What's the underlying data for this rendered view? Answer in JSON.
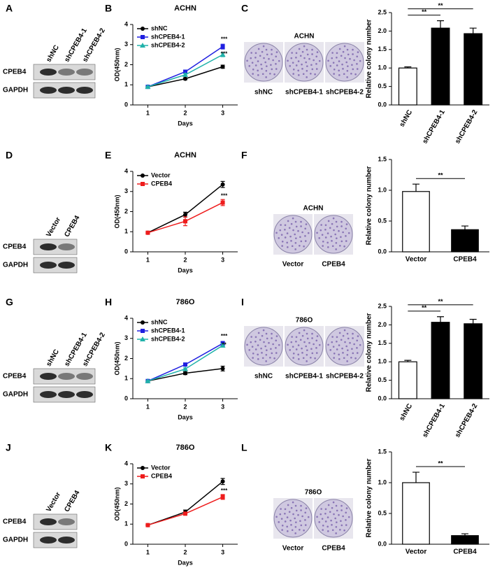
{
  "panel_letters": [
    "A",
    "B",
    "C",
    "D",
    "E",
    "F",
    "G",
    "H",
    "I",
    "J",
    "K",
    "L"
  ],
  "blots": [
    {
      "lanes": [
        "shNC",
        "shCPEB4-1",
        "shCPEB4-2"
      ],
      "rows": [
        "CPEB4",
        "GAPDH"
      ]
    },
    {
      "lanes": [
        "Vector",
        "CPEB4"
      ],
      "rows": [
        "CPEB4",
        "GAPDH"
      ]
    },
    {
      "lanes": [
        "shNC",
        "shCPEB4-1",
        "shCPEB4-2"
      ],
      "rows": [
        "CPEB4",
        "GAPDH"
      ]
    },
    {
      "lanes": [
        "Vector",
        "CPEB4"
      ],
      "rows": [
        "CPEB4",
        "GAPDH"
      ]
    }
  ],
  "colonies": [
    {
      "title": "ACHN",
      "labels": [
        "shNC",
        "shCPEB4-1",
        "shCPEB4-2"
      ]
    },
    {
      "title": "ACHN",
      "labels": [
        "Vector",
        "CPEB4"
      ]
    },
    {
      "title": "786O",
      "labels": [
        "shNC",
        "shCPEB4-1",
        "shCPEB4-2"
      ]
    },
    {
      "title": "786O",
      "labels": [
        "Vector",
        "CPEB4"
      ]
    }
  ],
  "chart_data": [
    {
      "type": "line",
      "title": "ACHN",
      "x_label": "Days",
      "y_label": "OD(450nm)",
      "x": [
        1,
        2,
        3
      ],
      "xlim": [
        0.6,
        3.4
      ],
      "xticks": [
        1,
        2,
        3
      ],
      "ylim": [
        0,
        4
      ],
      "yticks": [
        0,
        1,
        2,
        3,
        4
      ],
      "series": [
        {
          "name": "shNC",
          "color": "#000000",
          "values": [
            0.9,
            1.3,
            1.9
          ],
          "errors": [
            0.03,
            0.05,
            0.08
          ]
        },
        {
          "name": "shCPEB4-1",
          "color": "#1f1fe0",
          "values": [
            0.9,
            1.65,
            2.9
          ],
          "errors": [
            0.03,
            0.08,
            0.12
          ]
        },
        {
          "name": "shCPEB4-2",
          "color": "#20b2aa",
          "values": [
            0.9,
            1.5,
            2.5
          ],
          "errors": [
            0.03,
            0.06,
            0.1
          ]
        }
      ],
      "annotations": [
        "***",
        "***"
      ]
    },
    {
      "type": "bar",
      "y_label": "Relative colony number",
      "categories": [
        "shNC",
        "shCPEB4-1",
        "shCPEB4-2"
      ],
      "values": [
        1.0,
        2.08,
        1.93
      ],
      "errors": [
        0.03,
        0.2,
        0.15
      ],
      "colors": [
        "#ffffff",
        "#000000",
        "#000000"
      ],
      "ylim": [
        0,
        2.5
      ],
      "yticks": [
        {
          "value": 0,
          "label": "0.0"
        },
        {
          "value": 0.5,
          "label": "0.5"
        },
        {
          "value": 1,
          "label": "1.0"
        },
        {
          "value": 1.5,
          "label": "1.5"
        },
        {
          "value": 2,
          "label": "2.0"
        },
        {
          "value": 2.5,
          "label": "2.5"
        }
      ],
      "annotations": [
        "**",
        "**"
      ]
    },
    {
      "type": "line",
      "title": "ACHN",
      "x_label": "Days",
      "y_label": "OD(450nm)",
      "x": [
        1,
        2,
        3
      ],
      "xlim": [
        0.6,
        3.4
      ],
      "xticks": [
        1,
        2,
        3
      ],
      "ylim": [
        0,
        4
      ],
      "yticks": [
        0,
        1,
        2,
        3,
        4
      ],
      "series": [
        {
          "name": "Vector",
          "color": "#000000",
          "values": [
            0.95,
            1.85,
            3.35
          ],
          "errors": [
            0.03,
            0.12,
            0.15
          ]
        },
        {
          "name": "CPEB4",
          "color": "#ee1c1c",
          "values": [
            0.95,
            1.52,
            2.45
          ],
          "errors": [
            0.03,
            0.22,
            0.15
          ]
        }
      ],
      "annotations": [
        "***"
      ]
    },
    {
      "type": "bar",
      "y_label": "Relative colony number",
      "categories": [
        "Vector",
        "CPEB4"
      ],
      "values": [
        0.98,
        0.36
      ],
      "errors": [
        0.12,
        0.06
      ],
      "colors": [
        "#ffffff",
        "#000000"
      ],
      "ylim": [
        0,
        1.5
      ],
      "yticks": [
        {
          "value": 0,
          "label": "0.0"
        },
        {
          "value": 0.5,
          "label": "0.5"
        },
        {
          "value": 1,
          "label": "1.0"
        },
        {
          "value": 1.5,
          "label": "1.5"
        }
      ],
      "annotations": [
        "**"
      ]
    },
    {
      "type": "line",
      "title": "786O",
      "x_label": "Days",
      "y_label": "OD(450nm)",
      "x": [
        1,
        2,
        3
      ],
      "xlim": [
        0.6,
        3.4
      ],
      "xticks": [
        1,
        2,
        3
      ],
      "ylim": [
        0,
        4
      ],
      "yticks": [
        0,
        1,
        2,
        3,
        4
      ],
      "series": [
        {
          "name": "shNC",
          "color": "#000000",
          "values": [
            0.88,
            1.27,
            1.5
          ],
          "errors": [
            0.03,
            0.07,
            0.12
          ]
        },
        {
          "name": "shCPEB4-1",
          "color": "#1f1fe0",
          "values": [
            0.88,
            1.7,
            2.75
          ],
          "errors": [
            0.03,
            0.06,
            0.1
          ]
        },
        {
          "name": "shCPEB4-2",
          "color": "#20b2aa",
          "values": [
            0.88,
            1.48,
            2.65
          ],
          "errors": [
            0.03,
            0.05,
            0.08
          ]
        }
      ],
      "annotations": [
        "***",
        "**"
      ]
    },
    {
      "type": "bar",
      "y_label": "Relative colony number",
      "categories": [
        "shNC",
        "shCPEB4-1",
        "shCPEB4-2"
      ],
      "values": [
        1.0,
        2.07,
        2.03
      ],
      "errors": [
        0.04,
        0.15,
        0.12
      ],
      "colors": [
        "#ffffff",
        "#000000",
        "#000000"
      ],
      "ylim": [
        0,
        2.5
      ],
      "yticks": [
        {
          "value": 0,
          "label": "0.0"
        },
        {
          "value": 0.5,
          "label": "0.5"
        },
        {
          "value": 1,
          "label": "1.0"
        },
        {
          "value": 1.5,
          "label": "1.5"
        },
        {
          "value": 2,
          "label": "2.0"
        },
        {
          "value": 2.5,
          "label": "2.5"
        }
      ],
      "annotations": [
        "**",
        "**"
      ]
    },
    {
      "type": "line",
      "title": "786O",
      "x_label": "Days",
      "y_label": "OD(450nm)",
      "x": [
        1,
        2,
        3
      ],
      "xlim": [
        0.6,
        3.4
      ],
      "xticks": [
        1,
        2,
        3
      ],
      "ylim": [
        0,
        4
      ],
      "yticks": [
        0,
        1,
        2,
        3,
        4
      ],
      "series": [
        {
          "name": "Vector",
          "color": "#000000",
          "values": [
            0.95,
            1.6,
            3.12
          ],
          "errors": [
            0.03,
            0.1,
            0.15
          ]
        },
        {
          "name": "CPEB4",
          "color": "#ee1c1c",
          "values": [
            0.95,
            1.52,
            2.35
          ],
          "errors": [
            0.03,
            0.05,
            0.12
          ]
        }
      ],
      "annotations": [
        "***"
      ]
    },
    {
      "type": "bar",
      "y_label": "Relative colony number",
      "categories": [
        "Vector",
        "CPEB4"
      ],
      "values": [
        1.0,
        0.14
      ],
      "errors": [
        0.17,
        0.03
      ],
      "colors": [
        "#ffffff",
        "#000000"
      ],
      "ylim": [
        0,
        1.5
      ],
      "yticks": [
        {
          "value": 0,
          "label": "0.0"
        },
        {
          "value": 0.5,
          "label": "0.5"
        },
        {
          "value": 1,
          "label": "1.0"
        },
        {
          "value": 1.5,
          "label": "1.5"
        }
      ],
      "annotations": [
        "**"
      ]
    }
  ]
}
